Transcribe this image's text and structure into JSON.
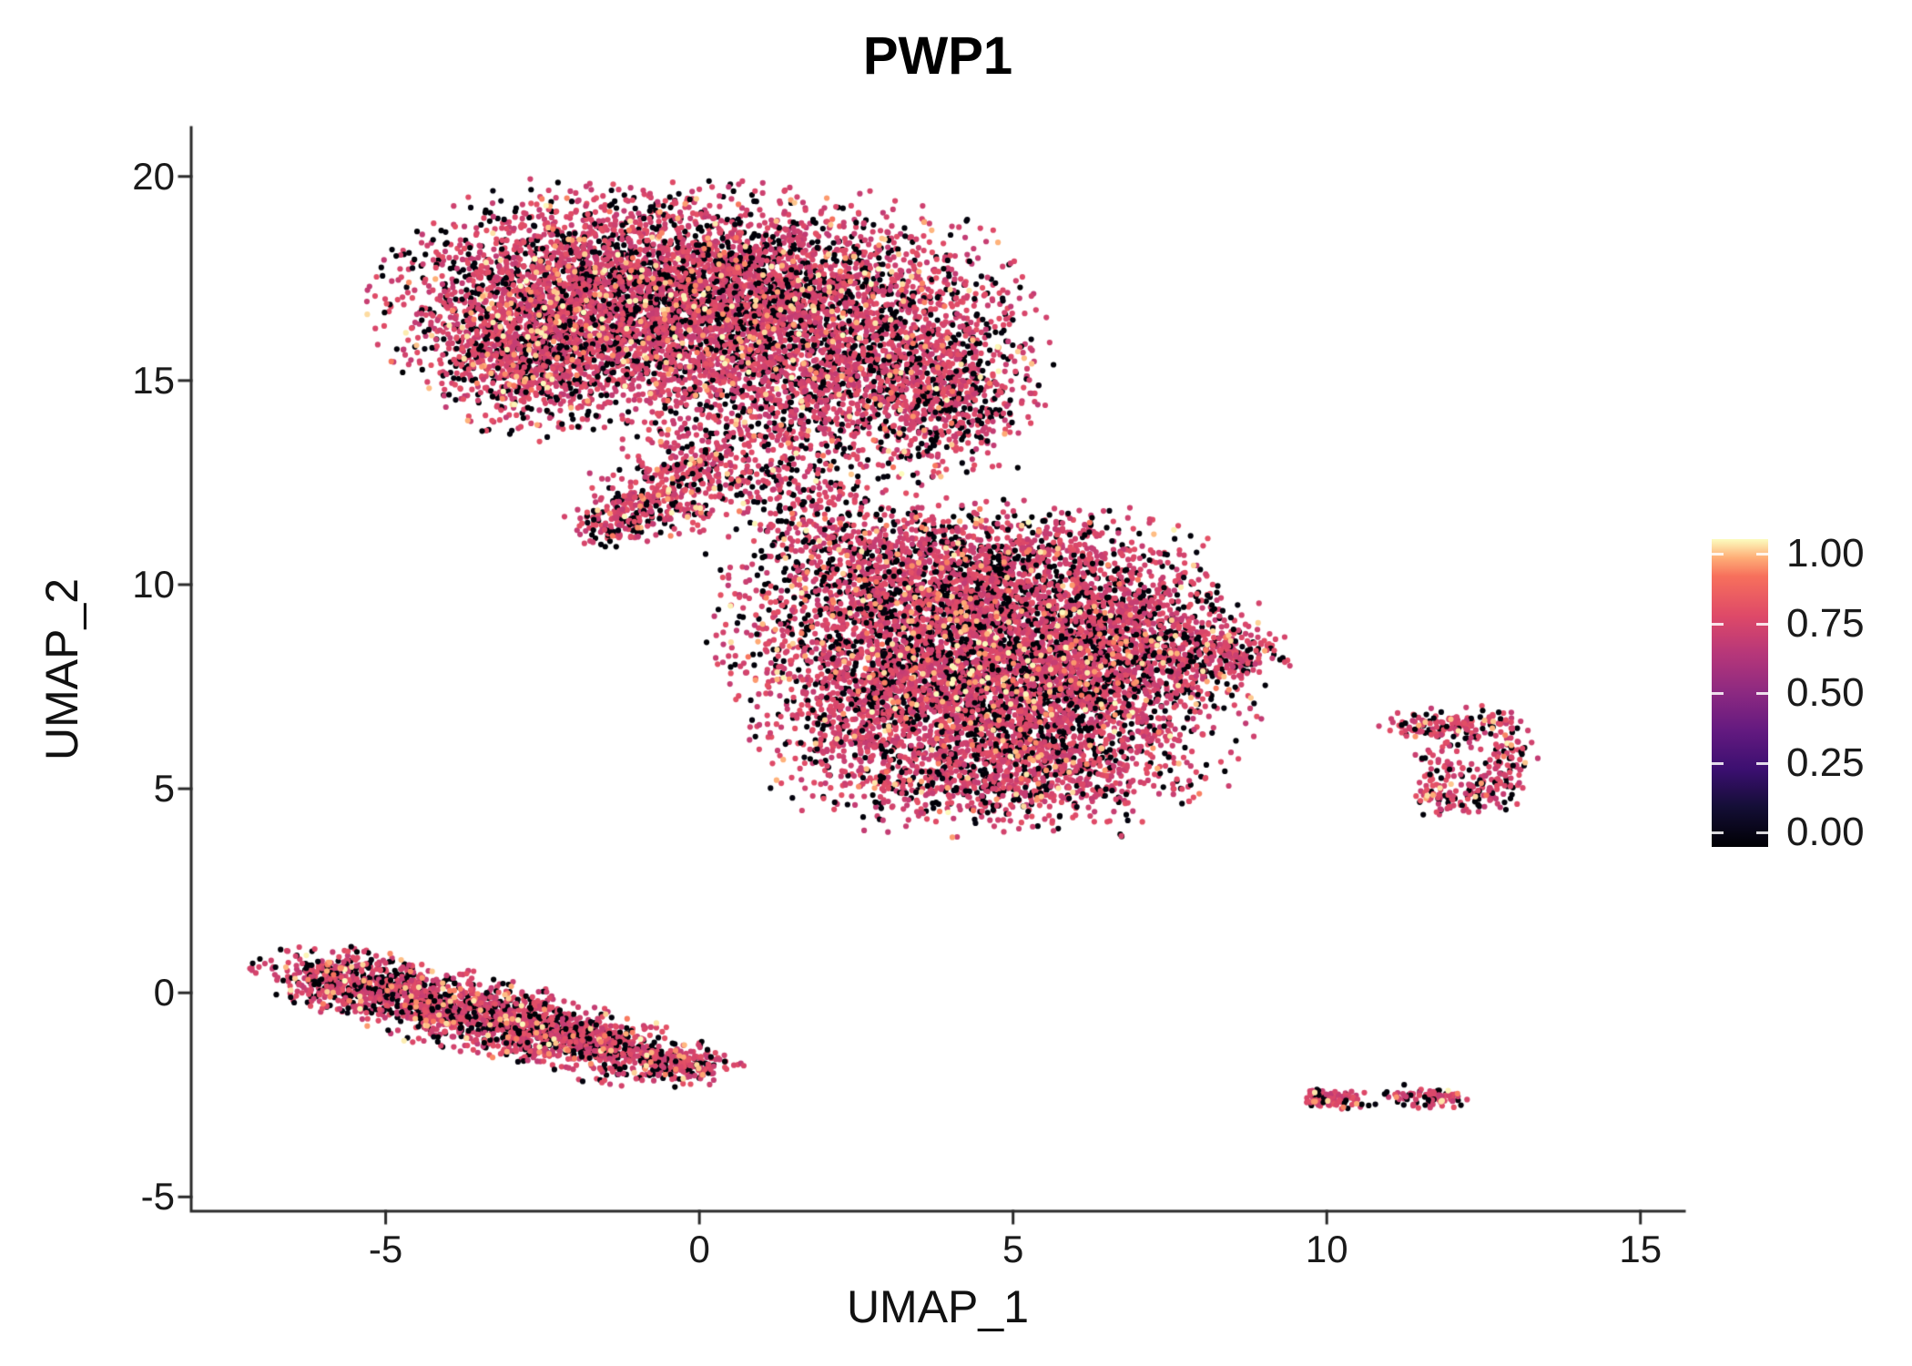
{
  "chart_data": {
    "type": "scatter",
    "title": "PWP1",
    "xlabel": "UMAP_1",
    "ylabel": "UMAP_2",
    "xlim": [
      -8.1,
      15.7
    ],
    "ylim": [
      -5.35,
      21.2
    ],
    "grid": false,
    "legend_position": "right",
    "xticks": [
      {
        "v": -5,
        "label": "-5"
      },
      {
        "v": 0,
        "label": "0"
      },
      {
        "v": 5,
        "label": "5"
      },
      {
        "v": 10,
        "label": "10"
      },
      {
        "v": 15,
        "label": "15"
      }
    ],
    "yticks": [
      {
        "v": 20,
        "label": "20"
      },
      {
        "v": 15,
        "label": "15"
      },
      {
        "v": 10,
        "label": "10"
      },
      {
        "v": 5,
        "label": "5"
      },
      {
        "v": 0,
        "label": "0"
      },
      {
        "v": -5,
        "label": "-5"
      }
    ],
    "colorbar": {
      "ticks": [
        {
          "v": 1.0,
          "label": "1.00"
        },
        {
          "v": 0.75,
          "label": "0.75"
        },
        {
          "v": 0.5,
          "label": "0.50"
        },
        {
          "v": 0.25,
          "label": "0.25"
        },
        {
          "v": 0.0,
          "label": "0.00"
        }
      ],
      "stops": [
        {
          "v": 0.0,
          "color": "#000004"
        },
        {
          "v": 0.13,
          "color": "#140e36"
        },
        {
          "v": 0.25,
          "color": "#3b0f70"
        },
        {
          "v": 0.38,
          "color": "#641a80"
        },
        {
          "v": 0.5,
          "color": "#8c2981"
        },
        {
          "v": 0.63,
          "color": "#b73779"
        },
        {
          "v": 0.75,
          "color": "#de4968"
        },
        {
          "v": 0.88,
          "color": "#f7705c"
        },
        {
          "v": 0.94,
          "color": "#feae77"
        },
        {
          "v": 1.0,
          "color": "#fcfdbf"
        }
      ]
    },
    "point_radius": 3.1,
    "seed": 42,
    "value_distribution": {
      "zero_frac": 0.27,
      "mid_frac": 0.68,
      "mid_range": [
        0.66,
        0.78
      ],
      "high_frac": 0.05,
      "high_range": [
        0.88,
        1.0
      ]
    },
    "clusters": [
      {
        "name": "upper-blob",
        "components": [
          {
            "cx": -2.0,
            "cy": 16.9,
            "sx": 1.35,
            "sy": 1.25,
            "n": 2500
          },
          {
            "cx": 0.3,
            "cy": 17.2,
            "sx": 1.3,
            "sy": 1.1,
            "n": 1900
          },
          {
            "cx": 2.5,
            "cy": 16.3,
            "sx": 1.25,
            "sy": 1.35,
            "n": 1700
          },
          {
            "cx": 3.9,
            "cy": 14.6,
            "sx": 0.75,
            "sy": 1.0,
            "n": 650
          },
          {
            "cx": -2.8,
            "cy": 15.6,
            "sx": 0.7,
            "sy": 0.85,
            "n": 650
          },
          {
            "cx": 0.9,
            "cy": 14.8,
            "sx": 1.3,
            "sy": 0.8,
            "n": 700
          },
          {
            "cx": -0.2,
            "cy": 12.6,
            "sx": 0.8,
            "sy": 0.55,
            "angle": 35,
            "n": 380
          },
          {
            "cx": -1.1,
            "cy": 11.7,
            "sx": 0.55,
            "sy": 0.28,
            "angle": 20,
            "n": 220
          },
          {
            "cx": 1.7,
            "cy": 12.8,
            "sx": 0.8,
            "sy": 0.8,
            "n": 180
          }
        ]
      },
      {
        "name": "central-blob",
        "components": [
          {
            "cx": 4.3,
            "cy": 8.9,
            "sx": 1.7,
            "sy": 1.3,
            "n": 3000
          },
          {
            "cx": 5.6,
            "cy": 7.0,
            "sx": 1.4,
            "sy": 1.1,
            "n": 1700
          },
          {
            "cx": 3.0,
            "cy": 7.3,
            "sx": 1.0,
            "sy": 1.2,
            "n": 900
          },
          {
            "cx": 6.9,
            "cy": 8.7,
            "sx": 0.9,
            "sy": 0.8,
            "n": 700
          },
          {
            "cx": 8.3,
            "cy": 8.3,
            "sx": 0.5,
            "sy": 0.35,
            "n": 220
          },
          {
            "cx": 4.8,
            "cy": 5.3,
            "sx": 1.5,
            "sy": 0.65,
            "n": 800
          },
          {
            "cx": 2.8,
            "cy": 10.6,
            "sx": 1.1,
            "sy": 0.65,
            "n": 450
          },
          {
            "cx": 5.3,
            "cy": 10.7,
            "sx": 1.2,
            "sy": 0.6,
            "n": 420
          },
          {
            "cx": 1.8,
            "cy": 11.8,
            "sx": 0.6,
            "sy": 0.7,
            "n": 120
          }
        ]
      },
      {
        "name": "lower-left-band",
        "components": [
          {
            "cx": -5.5,
            "cy": 0.25,
            "sx": 0.7,
            "sy": 0.35,
            "angle": -15,
            "n": 500
          },
          {
            "cx": -4.2,
            "cy": -0.3,
            "sx": 0.9,
            "sy": 0.4,
            "angle": -20,
            "n": 600
          },
          {
            "cx": -2.8,
            "cy": -0.8,
            "sx": 0.9,
            "sy": 0.4,
            "angle": -20,
            "n": 600
          },
          {
            "cx": -1.4,
            "cy": -1.4,
            "sx": 0.8,
            "sy": 0.35,
            "angle": -15,
            "n": 450
          },
          {
            "cx": -0.2,
            "cy": -1.75,
            "sx": 0.4,
            "sy": 0.2,
            "angle": -10,
            "n": 150
          }
        ]
      },
      {
        "name": "right-small-cluster",
        "components": [
          {
            "cx": 11.55,
            "cy": 6.55,
            "sx": 0.32,
            "sy": 0.18,
            "n": 70
          },
          {
            "cx": 12.25,
            "cy": 6.55,
            "sx": 0.4,
            "sy": 0.22,
            "n": 80
          },
          {
            "cx": 12.9,
            "cy": 5.9,
            "sx": 0.22,
            "sy": 0.45,
            "n": 80
          },
          {
            "cx": 12.5,
            "cy": 5.0,
            "sx": 0.3,
            "sy": 0.3,
            "n": 80
          },
          {
            "cx": 11.95,
            "cy": 4.8,
            "sx": 0.3,
            "sy": 0.25,
            "n": 70
          },
          {
            "cx": 11.8,
            "cy": 5.7,
            "sx": 0.18,
            "sy": 0.35,
            "n": 40
          }
        ]
      },
      {
        "name": "lower-right-islets",
        "components": [
          {
            "cx": 10.1,
            "cy": -2.62,
            "sx": 0.28,
            "sy": 0.13,
            "angle": -5,
            "n": 90
          },
          {
            "cx": 11.65,
            "cy": -2.55,
            "sx": 0.33,
            "sy": 0.12,
            "angle": -8,
            "n": 90
          },
          {
            "cx": 11.15,
            "cy": -2.6,
            "sx": 0.06,
            "sy": 0.05,
            "n": 8
          }
        ]
      },
      {
        "name": "isolated-point",
        "components": [
          {
            "cx": 6.75,
            "cy": 3.85,
            "sx": 0.04,
            "sy": 0.04,
            "n": 3
          }
        ]
      }
    ]
  }
}
